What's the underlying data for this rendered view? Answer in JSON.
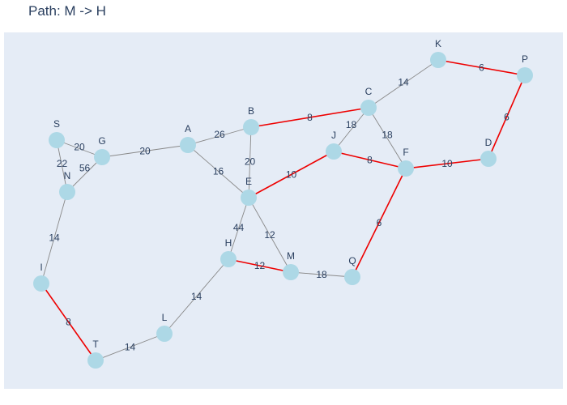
{
  "title": "Path: M -> H",
  "colors": {
    "plot_bg": "#e5ecf6",
    "edge_default": "#888888",
    "edge_path": "#ee0000",
    "node_fill": "#add8e6",
    "text": "#2a3f5f"
  },
  "chart_data": {
    "type": "network",
    "nodes": [
      {
        "id": "K"
      },
      {
        "id": "P"
      },
      {
        "id": "C"
      },
      {
        "id": "B"
      },
      {
        "id": "S"
      },
      {
        "id": "G"
      },
      {
        "id": "A"
      },
      {
        "id": "J"
      },
      {
        "id": "F"
      },
      {
        "id": "D"
      },
      {
        "id": "N"
      },
      {
        "id": "E"
      },
      {
        "id": "H"
      },
      {
        "id": "M"
      },
      {
        "id": "Q"
      },
      {
        "id": "I"
      },
      {
        "id": "L"
      },
      {
        "id": "T"
      }
    ],
    "edges": [
      {
        "source": "K",
        "target": "P",
        "weight": "6",
        "highlight": true
      },
      {
        "source": "C",
        "target": "K",
        "weight": "14",
        "highlight": false
      },
      {
        "source": "B",
        "target": "C",
        "weight": "8",
        "highlight": true
      },
      {
        "source": "P",
        "target": "D",
        "weight": "6",
        "highlight": true
      },
      {
        "source": "C",
        "target": "J",
        "weight": "18",
        "highlight": false
      },
      {
        "source": "C",
        "target": "F",
        "weight": "18",
        "highlight": false
      },
      {
        "source": "J",
        "target": "F",
        "weight": "8",
        "highlight": true
      },
      {
        "source": "F",
        "target": "D",
        "weight": "10",
        "highlight": true
      },
      {
        "source": "A",
        "target": "B",
        "weight": "26",
        "highlight": false
      },
      {
        "source": "B",
        "target": "E",
        "weight": "20",
        "highlight": false
      },
      {
        "source": "E",
        "target": "J",
        "weight": "10",
        "highlight": true
      },
      {
        "source": "S",
        "target": "G",
        "weight": "20",
        "highlight": false
      },
      {
        "source": "G",
        "target": "A",
        "weight": "20",
        "highlight": false
      },
      {
        "source": "A",
        "target": "E",
        "weight": "16",
        "highlight": false
      },
      {
        "source": "S",
        "target": "N",
        "weight": "22",
        "highlight": false
      },
      {
        "source": "G",
        "target": "N",
        "weight": "56",
        "highlight": false
      },
      {
        "source": "N",
        "target": "I",
        "weight": "14",
        "highlight": false
      },
      {
        "source": "E",
        "target": "H",
        "weight": "44",
        "highlight": false
      },
      {
        "source": "E",
        "target": "M",
        "weight": "12",
        "highlight": false
      },
      {
        "source": "H",
        "target": "M",
        "weight": "12",
        "highlight": true
      },
      {
        "source": "M",
        "target": "Q",
        "weight": "18",
        "highlight": false
      },
      {
        "source": "F",
        "target": "Q",
        "weight": "6",
        "highlight": true
      },
      {
        "source": "I",
        "target": "T",
        "weight": "8",
        "highlight": true
      },
      {
        "source": "T",
        "target": "L",
        "weight": "14",
        "highlight": false
      },
      {
        "source": "L",
        "target": "H",
        "weight": "14",
        "highlight": false
      }
    ]
  }
}
